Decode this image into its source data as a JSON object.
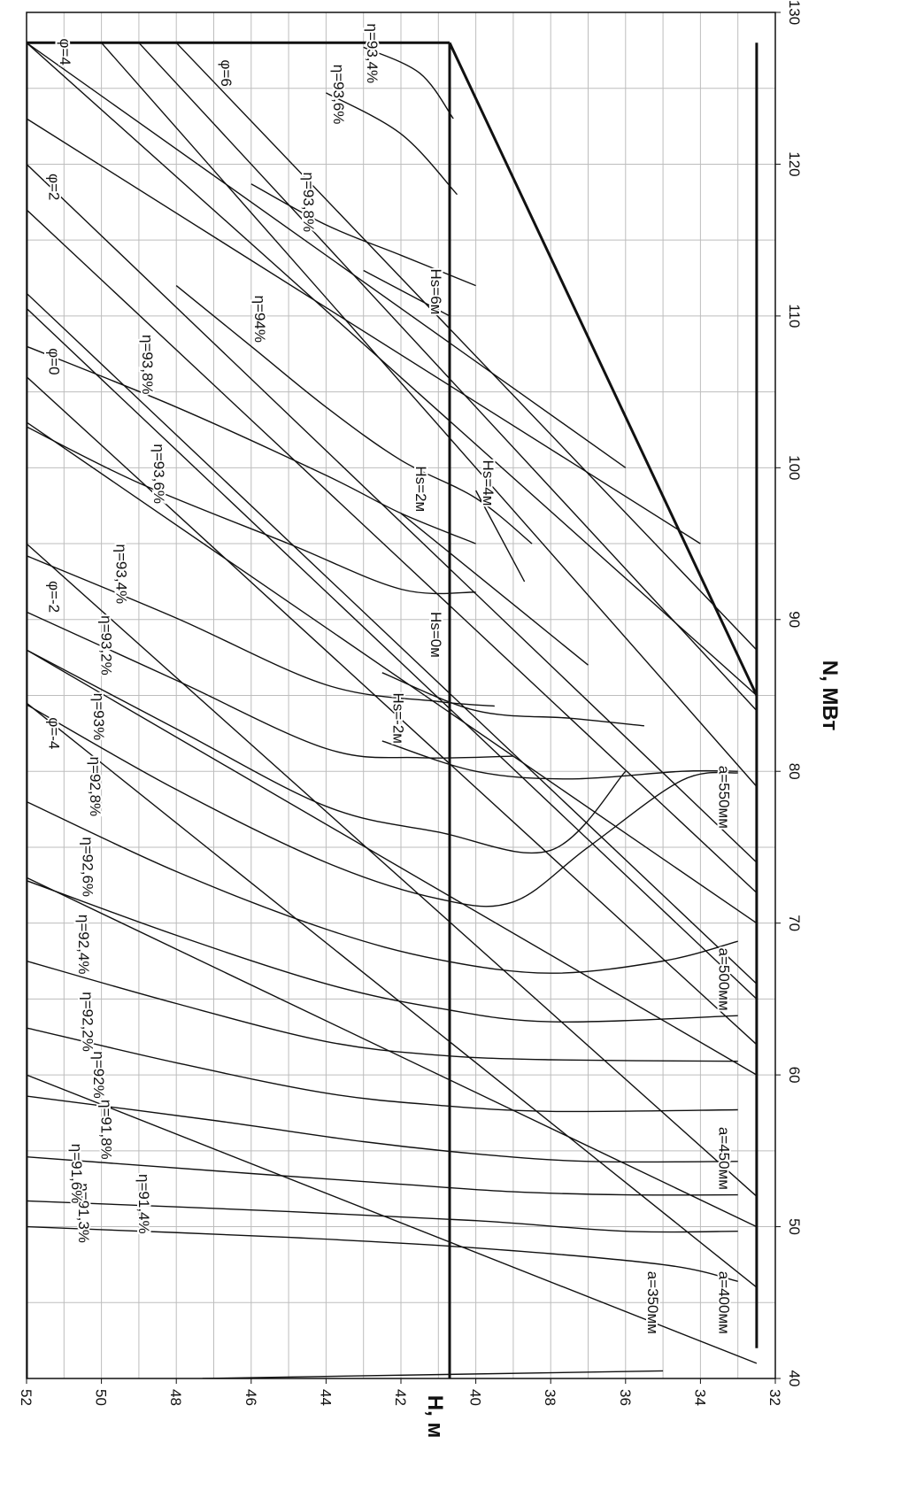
{
  "chart_data": {
    "type": "line",
    "xlabel": "H, м",
    "ylabel": "N, МВт",
    "xlim": [
      32,
      52
    ],
    "ylim": [
      40,
      130
    ],
    "x_ticks": [
      "32",
      "34",
      "36",
      "38",
      "40",
      "42",
      "44",
      "46",
      "48",
      "50",
      "52"
    ],
    "y_ticks": [
      "40",
      "50",
      "60",
      "70",
      "80",
      "90",
      "100",
      "110",
      "120",
      "130"
    ],
    "grid": true,
    "orientation": "rotated 90° clockwise (H axis along bottom, N axis along right)",
    "operating_zone": {
      "name": "",
      "points": [
        [
          52,
          128
        ],
        [
          40.7,
          128
        ],
        [
          32.5,
          85
        ],
        [
          32.5,
          42
        ],
        [
          40.7,
          42
        ],
        [
          52,
          42
        ]
      ],
      "H_max": 52,
      "H_design": 40.7,
      "H_min": 32.5
    },
    "efficiency_curves": [
      {
        "name": "η=91,3%",
        "points": [
          [
            52,
            50
          ],
          [
            45,
            49.3
          ],
          [
            40,
            48.6
          ],
          [
            35,
            47.5
          ],
          [
            33,
            46.4
          ]
        ]
      },
      {
        "name": "η=91,4%",
        "points": [
          [
            52,
            51.7
          ],
          [
            45,
            51
          ],
          [
            40,
            50.4
          ],
          [
            36,
            49.7
          ],
          [
            33,
            49.7
          ]
        ]
      },
      {
        "name": "η=91,6%",
        "points": [
          [
            52,
            54.6
          ],
          [
            46,
            53.5
          ],
          [
            42,
            52.8
          ],
          [
            39,
            52.3
          ],
          [
            36,
            52.1
          ],
          [
            33,
            52.1
          ]
        ]
      },
      {
        "name": "η=91,8%",
        "points": [
          [
            52,
            58.6
          ],
          [
            47,
            57
          ],
          [
            43,
            55.6
          ],
          [
            40,
            54.8
          ],
          [
            37,
            54.3
          ],
          [
            33,
            54.3
          ]
        ]
      },
      {
        "name": "η=92%",
        "points": [
          [
            52,
            63.1
          ],
          [
            48,
            60.8
          ],
          [
            44,
            58.8
          ],
          [
            41,
            58
          ],
          [
            38,
            57.6
          ],
          [
            33,
            57.7
          ]
        ]
      },
      {
        "name": "η=92,2%",
        "points": [
          [
            52,
            67.5
          ],
          [
            48,
            64.7
          ],
          [
            44,
            62.2
          ],
          [
            41,
            61.3
          ],
          [
            38,
            61
          ],
          [
            33,
            60.9
          ]
        ]
      },
      {
        "name": "η=92,4%",
        "points": [
          [
            52,
            72.8
          ],
          [
            48,
            69.2
          ],
          [
            44,
            66
          ],
          [
            41,
            64.4
          ],
          [
            38,
            63.5
          ],
          [
            33,
            63.9
          ]
        ]
      },
      {
        "name": "η=92,6%",
        "points": [
          [
            52,
            78
          ],
          [
            48,
            73.4
          ],
          [
            44,
            69.6
          ],
          [
            41,
            67.6
          ],
          [
            38,
            66.7
          ],
          [
            35,
            67.5
          ],
          [
            33,
            68.8
          ]
        ]
      },
      {
        "name": "η=92,8%",
        "points": [
          [
            52,
            84.4
          ],
          [
            48,
            78.8
          ],
          [
            44,
            74
          ],
          [
            41,
            71.6
          ],
          [
            39,
            71.4
          ],
          [
            37,
            75
          ],
          [
            34.5,
            79.4
          ],
          [
            33,
            79.9
          ]
        ]
      },
      {
        "name": "η=93%",
        "points": [
          [
            52,
            88
          ],
          [
            48,
            82.8
          ],
          [
            44,
            77.7
          ],
          [
            41,
            76
          ],
          [
            38,
            74.8
          ],
          [
            36,
            80
          ]
        ]
      },
      {
        "name": "η=93,2%",
        "points": [
          [
            52,
            90.5
          ],
          [
            48,
            86
          ],
          [
            44,
            81.5
          ],
          [
            41.5,
            80.9
          ],
          [
            39,
            81
          ]
        ]
      },
      {
        "name": "η=93,4%",
        "points": [
          [
            52,
            94.2
          ],
          [
            48,
            90.1
          ],
          [
            44,
            85.7
          ],
          [
            41,
            84.6
          ],
          [
            39.5,
            84.3
          ]
        ]
      },
      {
        "name": "η=93,6%",
        "points": [
          [
            52,
            102.7
          ],
          [
            49,
            99
          ],
          [
            45,
            95
          ],
          [
            42,
            92
          ],
          [
            40,
            91.8
          ]
        ]
      },
      {
        "name": "η=93,8%",
        "points": [
          [
            52,
            108
          ],
          [
            48,
            104
          ],
          [
            44,
            99.5
          ],
          [
            42,
            97
          ],
          [
            40,
            95
          ]
        ]
      },
      {
        "name": "η=94%",
        "points": [
          [
            48,
            112
          ],
          [
            46,
            108
          ],
          [
            44,
            104
          ],
          [
            42,
            100.5
          ],
          [
            40,
            98
          ],
          [
            38.5,
            95
          ]
        ]
      },
      {
        "name": "η=93,8%",
        "points": [
          [
            46,
            118.7
          ],
          [
            44,
            116
          ],
          [
            42,
            114
          ],
          [
            40,
            112
          ]
        ]
      },
      {
        "name": "η=93,6%",
        "points": [
          [
            44,
            124.7
          ],
          [
            42,
            122
          ],
          [
            40.5,
            118
          ]
        ]
      },
      {
        "name": "η=93,4%",
        "points": [
          [
            43,
            127.7
          ],
          [
            41.5,
            126
          ],
          [
            40.6,
            123
          ]
        ]
      }
    ],
    "suction_head_curves": [
      {
        "name": "Hs=-2м",
        "points": [
          [
            42.5,
            82
          ],
          [
            40,
            80
          ],
          [
            37.5,
            79.5
          ],
          [
            34.5,
            80
          ],
          [
            33,
            80
          ]
        ]
      },
      {
        "name": "Hs=0м",
        "points": [
          [
            42.5,
            86.5
          ],
          [
            40,
            84
          ],
          [
            37.5,
            83.5
          ],
          [
            35.5,
            83
          ]
        ]
      },
      {
        "name": "Hs=2м",
        "points": [
          [
            42,
            97
          ],
          [
            40,
            93
          ],
          [
            37,
            87
          ]
        ]
      },
      {
        "name": "Hs=4м",
        "points": [
          [
            40,
            98.5
          ],
          [
            38.7,
            92.5
          ]
        ]
      },
      {
        "name": "Hs=6м",
        "points": [
          [
            43,
            113
          ],
          [
            40.7,
            110
          ]
        ]
      }
    ],
    "phi_lines": [
      {
        "name": "φ=-4",
        "points": [
          [
            52,
            84.5
          ],
          [
            32.5,
            46
          ]
        ]
      },
      {
        "name": "φ=-2",
        "points": [
          [
            52,
            95
          ],
          [
            32.5,
            52
          ]
        ]
      },
      {
        "name": "φ=0",
        "points": [
          [
            52,
            110.5
          ],
          [
            32.5,
            65
          ]
        ]
      },
      {
        "name": "φ=2",
        "points": [
          [
            52,
            117
          ],
          [
            32.5,
            72
          ]
        ]
      },
      {
        "name": "φ=4",
        "points": [
          [
            52,
            128
          ],
          [
            32.5,
            85
          ]
        ]
      },
      {
        "name": "φ=6",
        "points": [
          [
            48,
            128
          ],
          [
            32.5,
            88
          ]
        ]
      }
    ],
    "opening_lines": [
      {
        "name": "a=350мм",
        "points": [
          [
            47.3,
            40
          ],
          [
            35,
            40.5
          ]
        ]
      },
      {
        "name": "a=400мм",
        "points": [
          [
            52,
            60
          ],
          [
            32.5,
            41
          ]
        ]
      },
      {
        "name": "a=450мм",
        "points": [
          [
            52,
            73
          ],
          [
            32.5,
            50
          ]
        ]
      },
      {
        "name": "a=500мм",
        "points": [
          [
            52,
            88
          ],
          [
            32.5,
            60
          ]
        ]
      },
      {
        "name": "a=550мм",
        "points": [
          [
            52,
            103
          ],
          [
            32.5,
            70
          ]
        ]
      }
    ],
    "extra_lines": [
      {
        "points": [
          [
            52,
            106
          ],
          [
            32.5,
            62
          ]
        ]
      },
      {
        "points": [
          [
            52,
            111.5
          ],
          [
            32.5,
            66
          ]
        ]
      },
      {
        "points": [
          [
            52,
            120
          ],
          [
            32.5,
            74
          ]
        ]
      },
      {
        "points": [
          [
            50,
            128
          ],
          [
            32.5,
            79
          ]
        ]
      },
      {
        "points": [
          [
            49,
            128
          ],
          [
            32.5,
            84
          ]
        ]
      },
      {
        "points": [
          [
            52,
            128
          ],
          [
            36,
            100
          ]
        ]
      },
      {
        "points": [
          [
            52,
            123
          ],
          [
            34,
            95
          ]
        ]
      }
    ],
    "boundary_lines": [
      {
        "points": [
          [
            52,
            128
          ],
          [
            40.7,
            128
          ]
        ]
      },
      {
        "points": [
          [
            40.7,
            128
          ],
          [
            32.5,
            85
          ]
        ]
      },
      {
        "points": [
          [
            52,
            40
          ],
          [
            52,
            128
          ]
        ]
      },
      {
        "points": [
          [
            40.7,
            40
          ],
          [
            40.7,
            128
          ]
        ]
      },
      {
        "points": [
          [
            32.5,
            42
          ],
          [
            32.5,
            128
          ]
        ]
      }
    ]
  }
}
